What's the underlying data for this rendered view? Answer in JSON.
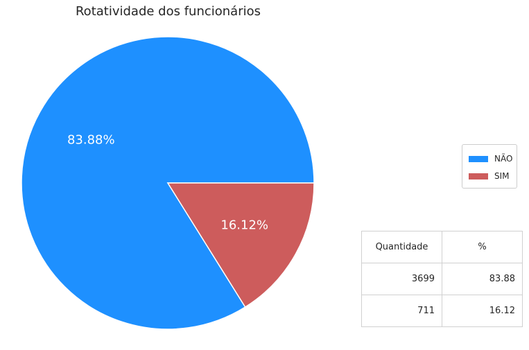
{
  "chart_data": {
    "type": "pie",
    "title": "Rotatividade dos funcionários",
    "series": [
      {
        "name": "NÃO",
        "value": 3699,
        "percent_label": "83.88%",
        "color": "#1e90ff"
      },
      {
        "name": "SIM",
        "value": 711,
        "percent_label": "16.12%",
        "color": "#cd5c5c"
      }
    ],
    "legend": {
      "placement": "right",
      "entries": [
        "NÃO",
        "SIM"
      ]
    }
  },
  "table": {
    "headers": [
      "Quantidade",
      "%"
    ],
    "rows": [
      [
        "3699",
        "83.88"
      ],
      [
        "711",
        "16.12"
      ]
    ]
  }
}
